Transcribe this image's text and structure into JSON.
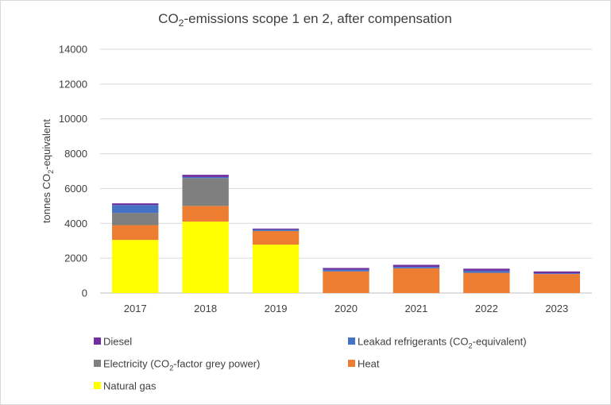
{
  "chart_data": {
    "type": "bar",
    "stacked": true,
    "title": "CO2-emissions scope 1 en 2, after compensation",
    "title_parts": {
      "pre": "CO",
      "sub": "2",
      "post": "-emissions scope 1 en 2, after compensation"
    },
    "xlabel": "",
    "ylabel": "tonnes CO2-equivalent",
    "ylabel_parts": {
      "pre": "tonnes CO",
      "sub": "2",
      "post": "-equivalent"
    },
    "ylim": [
      0,
      14000
    ],
    "yticks": [
      0,
      2000,
      4000,
      6000,
      8000,
      10000,
      12000,
      14000
    ],
    "grid": true,
    "legend_position": "bottom",
    "categories": [
      "2017",
      "2018",
      "2019",
      "2020",
      "2021",
      "2022",
      "2023"
    ],
    "series": [
      {
        "name": "Natural gas",
        "color": "#ffff00",
        "values": [
          3050,
          4100,
          2780,
          0,
          0,
          0,
          0
        ]
      },
      {
        "name": "Heat",
        "color": "#ed7d31",
        "values": [
          850,
          900,
          780,
          1240,
          1420,
          1160,
          1090
        ]
      },
      {
        "name": "Electricity (CO2-factor grey power)",
        "color": "#7f7f7f",
        "values": [
          700,
          1600,
          0,
          0,
          0,
          0,
          0
        ]
      },
      {
        "name": "Leakad refrigerants (CO2-equivalent)",
        "color": "#4472c4",
        "values": [
          450,
          60,
          80,
          100,
          80,
          120,
          40
        ]
      },
      {
        "name": "Diesel",
        "color": "#7030a0",
        "values": [
          100,
          130,
          60,
          100,
          120,
          120,
          110
        ]
      }
    ],
    "legend_entries": [
      {
        "series_index": 4,
        "pre": "Diesel",
        "sub": "",
        "post": ""
      },
      {
        "series_index": 3,
        "pre": "Leakad refrigerants (CO",
        "sub": "2",
        "post": "-equivalent)"
      },
      {
        "series_index": 2,
        "pre": "Electricity (CO",
        "sub": "2",
        "post": "-factor grey power)"
      },
      {
        "series_index": 1,
        "pre": "Heat",
        "sub": "",
        "post": ""
      },
      {
        "series_index": 0,
        "pre": "Natural gas",
        "sub": "",
        "post": ""
      }
    ]
  }
}
